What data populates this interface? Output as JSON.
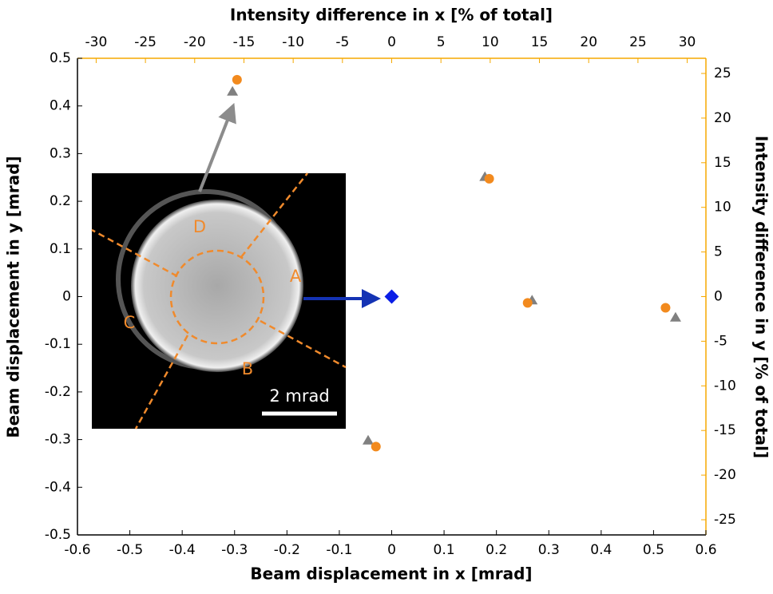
{
  "chart_data": {
    "type": "scatter",
    "xlabel": "Beam displacement in x [mrad]",
    "ylabel": "Beam displacement in y [mrad]",
    "x2label": "Intensity difference in x [% of total]",
    "y2label": "Intensity difference in y [% of total]",
    "xlim": [
      -0.6,
      0.6
    ],
    "xticks": [
      -0.6,
      -0.5,
      -0.4,
      -0.3,
      -0.2,
      -0.1,
      0,
      0.1,
      0.2,
      0.3,
      0.4,
      0.5,
      0.6
    ],
    "ylim": [
      -0.5,
      0.5
    ],
    "yticks": [
      -0.5,
      -0.4,
      -0.3,
      -0.2,
      -0.1,
      0,
      0.1,
      0.2,
      0.3,
      0.4,
      0.5
    ],
    "x2lim": [
      -31.9,
      31.9
    ],
    "x2ticks": [
      -30,
      -25,
      -20,
      -15,
      -10,
      -5,
      0,
      5,
      10,
      15,
      20,
      25,
      30
    ],
    "y2lim": [
      -26.7,
      26.7
    ],
    "y2ticks": [
      -25,
      -20,
      -15,
      -10,
      -5,
      0,
      5,
      10,
      15,
      20,
      25
    ],
    "series": [
      {
        "color": "#808080",
        "marker": "triangle",
        "x": [
          -0.304,
          0.178,
          0.268,
          0.542,
          -0.045
        ],
        "values": [
          0.43,
          0.251,
          -0.008,
          -0.044,
          -0.302
        ]
      },
      {
        "color": "#f28a1e",
        "marker": "circle",
        "axis": "y2",
        "xaxis": "x2",
        "x": [
          -15.7,
          9.9,
          13.8,
          27.8,
          -1.6
        ],
        "values": [
          24.3,
          13.2,
          -0.7,
          -1.25,
          -16.8
        ]
      },
      {
        "color": "#0a1ee6",
        "marker": "diamond",
        "x": [
          0
        ],
        "values": [
          0
        ]
      }
    ],
    "inset": {
      "labels": [
        "A",
        "B",
        "C",
        "D"
      ],
      "scale_bar": "2 mrad"
    }
  }
}
